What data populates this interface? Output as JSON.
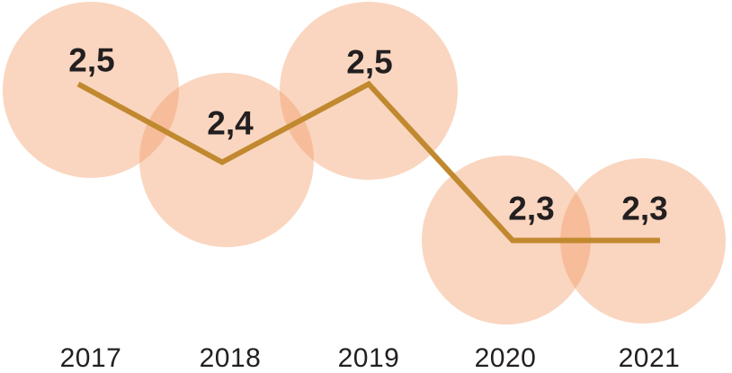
{
  "colors": {
    "background": "#FFFFFF",
    "bubble_fill": "#F39961",
    "bubble_opacity": 0.4,
    "line": "#C1892F",
    "text": "#231F20"
  },
  "chart_data": {
    "type": "line",
    "categories": [
      "2017",
      "2018",
      "2019",
      "2020",
      "2021"
    ],
    "values": [
      2.5,
      2.4,
      2.5,
      2.3,
      2.3
    ],
    "value_labels": [
      "2,5",
      "2,4",
      "2,5",
      "2,3",
      "2,3"
    ],
    "decimal_separator": ",",
    "grid": false,
    "legend": false,
    "y_axis_visible": false,
    "x_axis_position": "bottom",
    "marker_style": "large translucent overlapping bubbles behind each data point"
  }
}
